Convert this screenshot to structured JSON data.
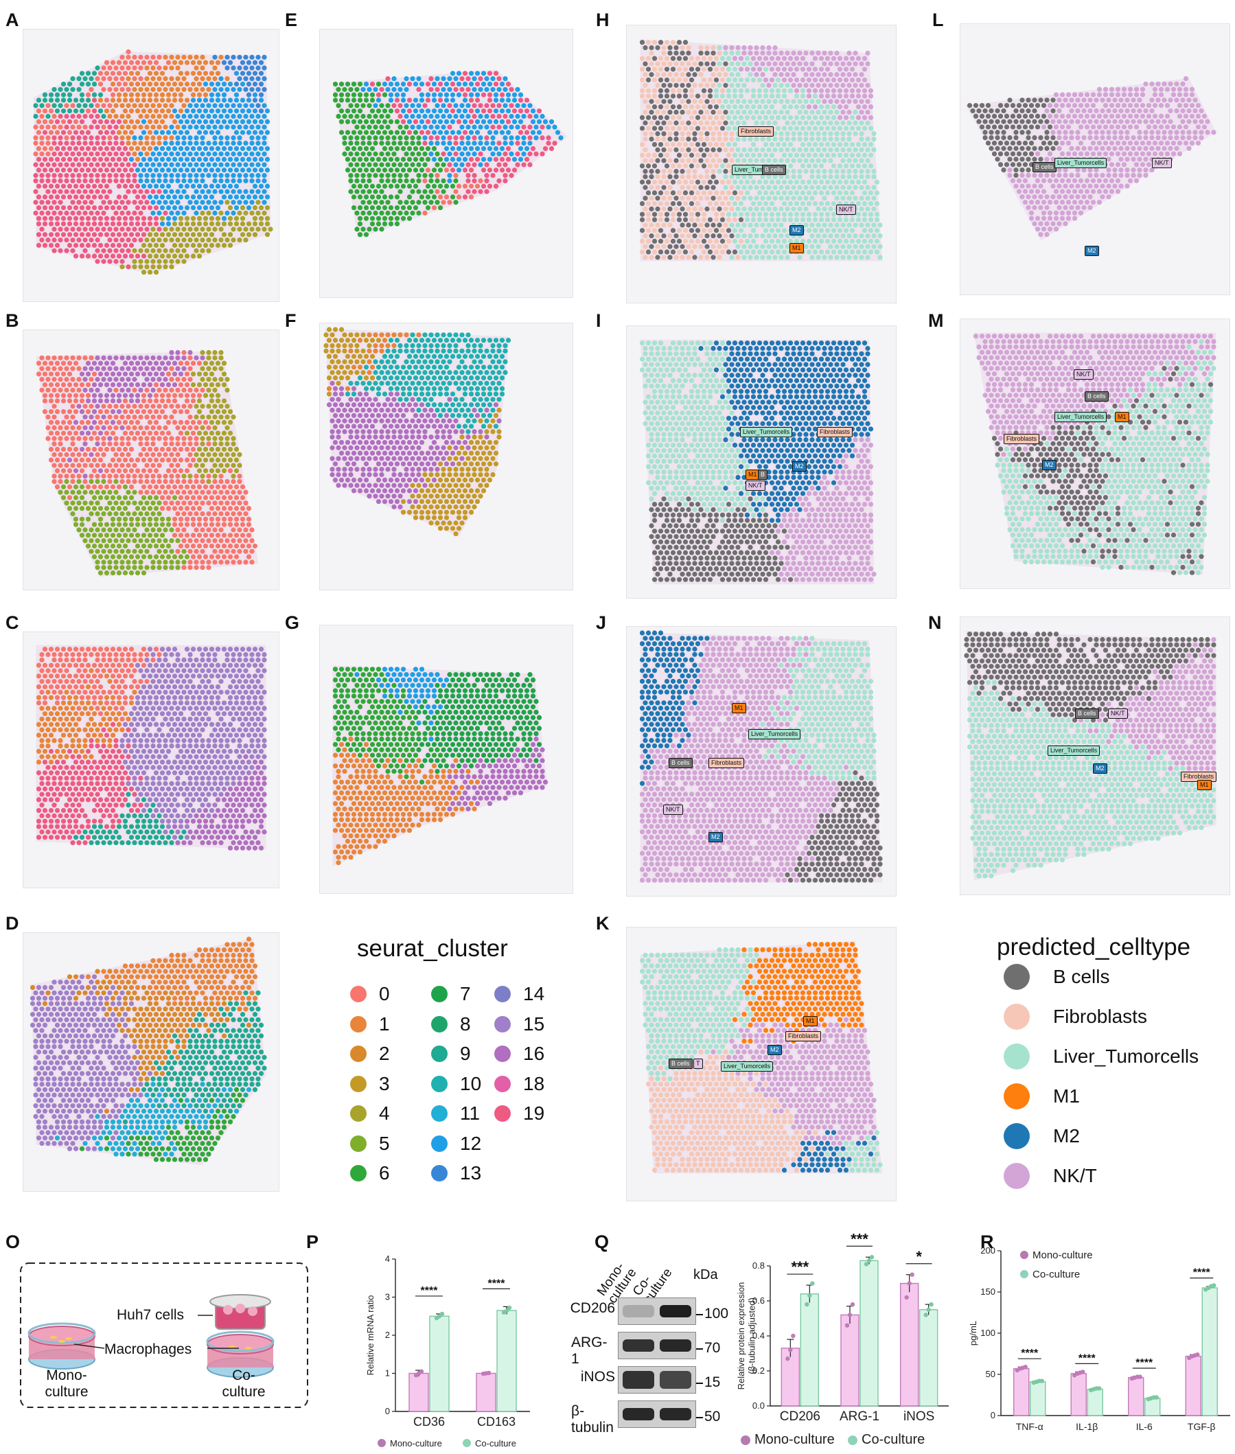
{
  "panels": {
    "A": "A",
    "B": "B",
    "C": "C",
    "D": "D",
    "E": "E",
    "F": "F",
    "G": "G",
    "H": "H",
    "I": "I",
    "J": "J",
    "K": "K",
    "L": "L",
    "M": "M",
    "N": "N",
    "O": "O",
    "P": "P",
    "Q": "Q",
    "R": "R"
  },
  "seurat_legend": {
    "title": "seurat_cluster",
    "items": [
      {
        "label": "0",
        "color": "#f8766d"
      },
      {
        "label": "1",
        "color": "#e8853a"
      },
      {
        "label": "2",
        "color": "#d9892b"
      },
      {
        "label": "3",
        "color": "#c49a27"
      },
      {
        "label": "4",
        "color": "#a8a32a"
      },
      {
        "label": "5",
        "color": "#7fae2b"
      },
      {
        "label": "6",
        "color": "#2fa83a"
      },
      {
        "label": "7",
        "color": "#1fa34a"
      },
      {
        "label": "8",
        "color": "#1fa56c"
      },
      {
        "label": "9",
        "color": "#1faa92"
      },
      {
        "label": "10",
        "color": "#1eb1b0"
      },
      {
        "label": "11",
        "color": "#21afd6"
      },
      {
        "label": "12",
        "color": "#1f9fe6"
      },
      {
        "label": "13",
        "color": "#3a86d6"
      },
      {
        "label": "14",
        "color": "#7c7fc7"
      },
      {
        "label": "15",
        "color": "#a080c8"
      },
      {
        "label": "16",
        "color": "#b06fc0"
      },
      {
        "label": "18",
        "color": "#e35fa8"
      },
      {
        "label": "19",
        "color": "#ef5a82"
      }
    ]
  },
  "celltype_legend": {
    "title": "predicted_celltype",
    "items": [
      {
        "label": "B cells",
        "color": "#6f6f6f"
      },
      {
        "label": "Fibroblasts",
        "color": "#f6c7b6"
      },
      {
        "label": "Liver_Tumorcells",
        "color": "#a5e3cf"
      },
      {
        "label": "M1",
        "color": "#ff7f0e"
      },
      {
        "label": "M2",
        "color": "#1f77b4"
      },
      {
        "label": "NK/T",
        "color": "#d3a4d6"
      }
    ]
  },
  "celltype_tags": {
    "H": [
      [
        "Fibroblasts",
        "fib"
      ],
      [
        "Liver_Tum",
        "liv"
      ],
      [
        "B cells",
        "b"
      ],
      [
        "NK/T",
        "nk"
      ],
      [
        "M2",
        "m2"
      ],
      [
        "M1",
        "m1"
      ]
    ],
    "I": [
      [
        "Liver_Tumorcells",
        "liv"
      ],
      [
        "Fibroblasts",
        "fib"
      ],
      [
        "M2",
        "m2"
      ],
      [
        "M1",
        "m1"
      ],
      [
        "B",
        "b"
      ],
      [
        "NK/T",
        "nk"
      ]
    ],
    "J": [
      [
        "M1",
        "m1"
      ],
      [
        "Liver_Tumorcells",
        "liv"
      ],
      [
        "B cells",
        "b"
      ],
      [
        "Fibroblasts",
        "fib"
      ],
      [
        "NK/T",
        "nk"
      ],
      [
        "M2",
        "m2"
      ]
    ],
    "K": [
      [
        "M1",
        "m1"
      ],
      [
        "Fibroblasts",
        "fib"
      ],
      [
        "M2",
        "m2"
      ],
      [
        "B cells",
        "b"
      ],
      [
        "T",
        "nk"
      ],
      [
        "Liver_Tumorcells",
        "liv"
      ]
    ],
    "L": [
      [
        "B cells",
        "b"
      ],
      [
        "Liver_Tumorcells",
        "liv"
      ],
      [
        "NK/T",
        "nk"
      ],
      [
        "M2",
        "m2"
      ]
    ],
    "M": [
      [
        "NK/T",
        "nk"
      ],
      [
        "B cells",
        "b"
      ],
      [
        "Liver_Tumorcells",
        "liv"
      ],
      [
        "M1",
        "m1"
      ],
      [
        "Fibroblasts",
        "fib"
      ],
      [
        "M2",
        "m2"
      ]
    ],
    "N": [
      [
        "B cells",
        "b"
      ],
      [
        "NK/T",
        "nk"
      ],
      [
        "Liver_Tumorcells",
        "liv"
      ],
      [
        "M2",
        "m2"
      ],
      [
        "Fibroblasts",
        "fib"
      ],
      [
        "M1",
        "m1"
      ]
    ]
  },
  "schematic": {
    "huh7": "Huh7 cells",
    "macrophages": "Macrophages",
    "mono_line1": "Mono-",
    "mono_line2": "culture",
    "co_line1": "Co-",
    "co_line2": "culture"
  },
  "western_blot": {
    "col1_line1": "Mono-",
    "col1_line2": "culture",
    "col2_line1": "Co-",
    "col2_line2": "culture",
    "kda": "kDa",
    "rows": [
      {
        "label": "CD206",
        "marker": "100"
      },
      {
        "label": "ARG-1",
        "marker": "70"
      },
      {
        "label": "iNOS",
        "marker": "15"
      },
      {
        "label": "β-tubulin",
        "marker": "50"
      }
    ]
  },
  "chart_data": [
    {
      "type": "bar",
      "panel": "P",
      "categories": [
        "CD36",
        "CD163"
      ],
      "ylabel": "Relative mRNA ratio",
      "ylim": [
        0,
        4
      ],
      "yticks": [
        0,
        1,
        2,
        3,
        4
      ],
      "series": [
        {
          "name": "Mono-culture",
          "color": "#f6c8ee",
          "edge": "#c27ab8",
          "values": [
            1.0,
            1.0
          ],
          "err": [
            0.08,
            0.02
          ],
          "points": [
            [
              0.95,
              1.0,
              1.05
            ],
            [
              0.99,
              1.0,
              1.01
            ]
          ]
        },
        {
          "name": "Co-culture",
          "color": "#d7f5e6",
          "edge": "#7cc8a2",
          "values": [
            2.5,
            2.65
          ],
          "err": [
            0.06,
            0.1
          ],
          "points": [
            [
              2.45,
              2.5,
              2.56
            ],
            [
              2.6,
              2.64,
              2.72
            ]
          ]
        }
      ],
      "significance": [
        "****",
        "****"
      ],
      "legend": "bottom"
    },
    {
      "type": "bar",
      "panel": "Q",
      "categories": [
        "CD206",
        "ARG-1",
        "iNOS"
      ],
      "ylabel": "Relative protein expression\n(β-tubulin adjusted)",
      "ylim": [
        0,
        0.8
      ],
      "yticks": [
        "0.0",
        "0.2",
        "0.4",
        "0.6",
        "0.8"
      ],
      "series": [
        {
          "name": "Mono-culture",
          "color": "#f6c8ee",
          "edge": "#c27ab8",
          "values": [
            0.33,
            0.52,
            0.7
          ],
          "err": [
            0.05,
            0.05,
            0.05
          ],
          "points": [
            [
              0.27,
              0.32,
              0.4
            ],
            [
              0.46,
              0.52,
              0.58
            ],
            [
              0.62,
              0.7,
              0.75
            ]
          ]
        },
        {
          "name": "Co-culture",
          "color": "#d7f5e6",
          "edge": "#7cc8a2",
          "values": [
            0.64,
            0.83,
            0.55
          ],
          "err": [
            0.05,
            0.02,
            0.03
          ],
          "points": [
            [
              0.58,
              0.63,
              0.7
            ],
            [
              0.81,
              0.83,
              0.85
            ],
            [
              0.52,
              0.55,
              0.58
            ]
          ]
        }
      ],
      "significance": [
        "***",
        "***",
        "*"
      ],
      "legend": "bottom"
    },
    {
      "type": "bar",
      "panel": "R",
      "categories": [
        "TNF-α",
        "IL-1β",
        "IL-6",
        "TGF-β"
      ],
      "ylabel": "pg/mL",
      "ylim": [
        0,
        200
      ],
      "yticks": [
        0,
        50,
        100,
        150,
        200
      ],
      "series": [
        {
          "name": "Mono-culture",
          "color": "#f6c8ee",
          "edge": "#c27ab8",
          "values": [
            57,
            51,
            46,
            72
          ],
          "err": [
            2,
            2,
            1.5,
            2
          ],
          "points": [
            [
              55,
              57,
              58,
              59
            ],
            [
              49,
              51,
              52,
              53
            ],
            [
              45,
              46,
              47,
              47
            ],
            [
              70,
              72,
              73,
              74
            ]
          ]
        },
        {
          "name": "Co-culture",
          "color": "#d7f5e6",
          "edge": "#7cc8a2",
          "values": [
            41,
            32,
            21,
            155
          ],
          "err": [
            1,
            1,
            1,
            2
          ],
          "points": [
            [
              40,
              41,
              42,
              42
            ],
            [
              31,
              32,
              33,
              33
            ],
            [
              20,
              21,
              22,
              22
            ],
            [
              153,
              155,
              157,
              158
            ]
          ]
        }
      ],
      "significance": [
        "****",
        "****",
        "****",
        "****"
      ],
      "legend": "top-left"
    }
  ]
}
